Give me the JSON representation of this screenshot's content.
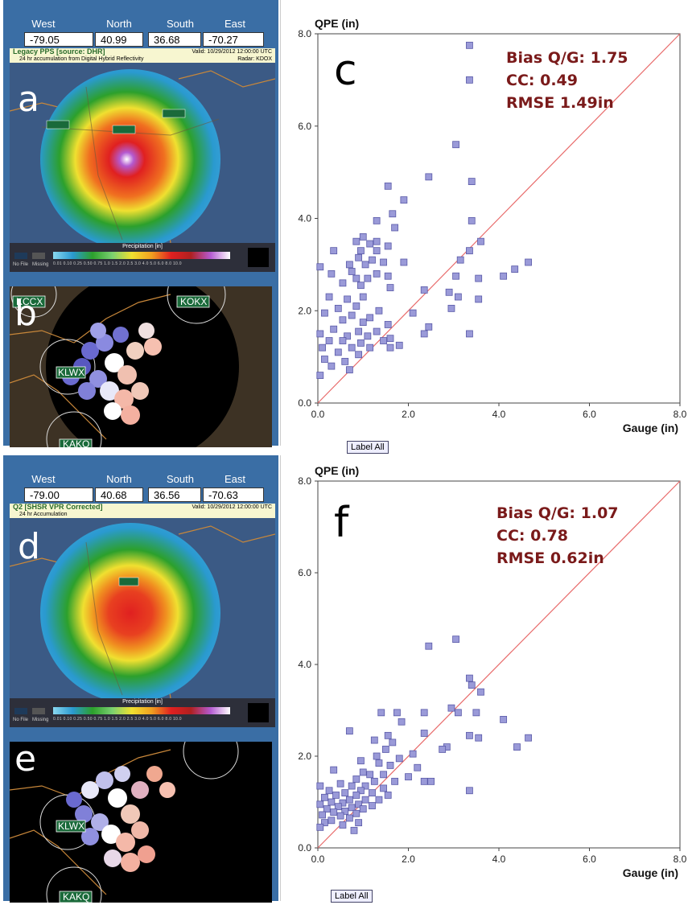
{
  "top": {
    "coords": {
      "west_label": "West",
      "north_label": "North",
      "south_label": "South",
      "east_label": "East",
      "west": "-79.05",
      "north": "40.99",
      "south": "36.68",
      "east": "-70.27"
    },
    "product": {
      "title": "Legacy PPS [source: DHR]",
      "sub": "24 hr accumulation from Digital Hybrid Reflectivity",
      "valid": "Valid: 10/29/2012 12:00:00 UTC",
      "radar": "Radar: KDOX"
    },
    "letter_map": "a",
    "letter_scatter": "b",
    "letter_chart": "c",
    "radar_labels": [
      "KCCX",
      "KOKX",
      "KLWX",
      "KAKQ"
    ],
    "stats": {
      "bias": "Bias Q/G: 1.75",
      "cc": "CC: 0.49",
      "rmse": "RMSE 1.49in"
    },
    "label_all": "Label All"
  },
  "bottom": {
    "coords": {
      "west_label": "West",
      "north_label": "North",
      "south_label": "South",
      "east_label": "East",
      "west": "-79.00",
      "north": "40.68",
      "south": "36.56",
      "east": "-70.63"
    },
    "product": {
      "title": "Q2 [SHSR VPR Corrected]",
      "sub": "24 hr Accumulation",
      "valid": "Valid: 10/29/2012 12:00:00 UTC",
      "radar": ""
    },
    "letter_map": "d",
    "letter_scatter": "e",
    "letter_chart": "f",
    "radar_labels": [
      "KLWX",
      "KAKQ"
    ],
    "stats": {
      "bias": "Bias Q/G: 1.07",
      "cc": "CC: 0.78",
      "rmse": "RMSE 0.62in"
    },
    "label_all": "Label All"
  },
  "precip_legend": {
    "title": "Precipitation [in]",
    "ticks": [
      "0.01",
      "0.10",
      "0.25",
      "0.50",
      "0.75",
      "1.0",
      "1.5",
      "2.0",
      "2.5",
      "3.0",
      "4.0",
      "5.0",
      "6.0",
      "8.0",
      "10.0"
    ],
    "nofile": "No File",
    "missing": "Missing"
  },
  "colors": {
    "point": "#9a9ad8",
    "point_stroke": "#5a5aa8",
    "oneline": "#e86a6a",
    "stat": "#7a1a1a"
  },
  "chart_data": [
    {
      "type": "scatter",
      "panel": "c",
      "ylabel": "QPE (in)",
      "xlabel": "Gauge (in)",
      "xlim": [
        0,
        8
      ],
      "ylim": [
        0,
        8
      ],
      "xticks": [
        "0.0",
        "2.0",
        "4.0",
        "6.0",
        "8.0"
      ],
      "yticks": [
        "0.0",
        "2.0",
        "4.0",
        "6.0",
        "8.0"
      ],
      "reference_line": "1:1",
      "points": [
        [
          3.35,
          7.75
        ],
        [
          3.35,
          7.0
        ],
        [
          3.05,
          5.6
        ],
        [
          2.45,
          4.9
        ],
        [
          1.55,
          4.7
        ],
        [
          1.9,
          4.4
        ],
        [
          3.4,
          4.8
        ],
        [
          1.65,
          4.1
        ],
        [
          1.3,
          3.95
        ],
        [
          3.4,
          3.95
        ],
        [
          1.7,
          3.8
        ],
        [
          1.0,
          3.6
        ],
        [
          1.3,
          3.5
        ],
        [
          0.85,
          3.5
        ],
        [
          1.15,
          3.45
        ],
        [
          0.35,
          3.3
        ],
        [
          0.95,
          3.3
        ],
        [
          1.55,
          3.4
        ],
        [
          3.6,
          3.5
        ],
        [
          3.35,
          3.3
        ],
        [
          1.3,
          3.3
        ],
        [
          0.9,
          3.15
        ],
        [
          1.2,
          3.1
        ],
        [
          1.45,
          3.05
        ],
        [
          0.7,
          3.0
        ],
        [
          1.05,
          3.0
        ],
        [
          1.9,
          3.05
        ],
        [
          3.15,
          3.1
        ],
        [
          4.65,
          3.05
        ],
        [
          0.05,
          2.95
        ],
        [
          0.3,
          2.8
        ],
        [
          0.75,
          2.85
        ],
        [
          1.3,
          2.8
        ],
        [
          1.55,
          2.75
        ],
        [
          4.35,
          2.9
        ],
        [
          0.85,
          2.7
        ],
        [
          1.1,
          2.7
        ],
        [
          3.05,
          2.75
        ],
        [
          3.55,
          2.7
        ],
        [
          4.1,
          2.75
        ],
        [
          0.55,
          2.6
        ],
        [
          0.95,
          2.55
        ],
        [
          1.6,
          2.5
        ],
        [
          0.25,
          2.3
        ],
        [
          0.65,
          2.25
        ],
        [
          1.0,
          2.3
        ],
        [
          2.35,
          2.45
        ],
        [
          2.9,
          2.4
        ],
        [
          3.1,
          2.3
        ],
        [
          0.85,
          2.1
        ],
        [
          0.45,
          2.05
        ],
        [
          1.35,
          2.0
        ],
        [
          3.55,
          2.25
        ],
        [
          0.15,
          1.95
        ],
        [
          0.75,
          1.9
        ],
        [
          1.15,
          1.85
        ],
        [
          2.1,
          1.95
        ],
        [
          2.95,
          2.05
        ],
        [
          0.55,
          1.8
        ],
        [
          1.0,
          1.75
        ],
        [
          1.55,
          1.7
        ],
        [
          2.45,
          1.65
        ],
        [
          0.35,
          1.6
        ],
        [
          0.9,
          1.55
        ],
        [
          1.3,
          1.55
        ],
        [
          0.05,
          1.5
        ],
        [
          0.65,
          1.45
        ],
        [
          1.1,
          1.45
        ],
        [
          1.6,
          1.4
        ],
        [
          2.35,
          1.5
        ],
        [
          3.35,
          1.5
        ],
        [
          0.25,
          1.35
        ],
        [
          0.55,
          1.35
        ],
        [
          0.95,
          1.3
        ],
        [
          1.45,
          1.35
        ],
        [
          1.8,
          1.25
        ],
        [
          0.1,
          1.2
        ],
        [
          0.75,
          1.2
        ],
        [
          1.15,
          1.2
        ],
        [
          1.6,
          1.2
        ],
        [
          0.45,
          1.1
        ],
        [
          0.9,
          1.05
        ],
        [
          0.15,
          0.95
        ],
        [
          0.6,
          0.9
        ],
        [
          0.3,
          0.8
        ],
        [
          0.7,
          0.72
        ],
        [
          0.05,
          0.6
        ]
      ]
    },
    {
      "type": "scatter",
      "panel": "f",
      "ylabel": "QPE (in)",
      "xlabel": "Gauge (in)",
      "xlim": [
        0,
        8
      ],
      "ylim": [
        0,
        8
      ],
      "xticks": [
        "0.0",
        "2.0",
        "4.0",
        "6.0",
        "8.0"
      ],
      "yticks": [
        "0.0",
        "2.0",
        "4.0",
        "6.0",
        "8.0"
      ],
      "reference_line": "1:1",
      "points": [
        [
          3.05,
          4.55
        ],
        [
          2.45,
          4.4
        ],
        [
          3.35,
          3.7
        ],
        [
          3.4,
          3.55
        ],
        [
          3.6,
          3.4
        ],
        [
          2.95,
          3.05
        ],
        [
          1.4,
          2.95
        ],
        [
          3.1,
          2.95
        ],
        [
          1.75,
          2.95
        ],
        [
          2.35,
          2.95
        ],
        [
          3.5,
          2.95
        ],
        [
          1.85,
          2.75
        ],
        [
          4.1,
          2.8
        ],
        [
          0.7,
          2.55
        ],
        [
          2.35,
          2.5
        ],
        [
          1.55,
          2.45
        ],
        [
          3.35,
          2.45
        ],
        [
          3.55,
          2.4
        ],
        [
          4.65,
          2.4
        ],
        [
          1.25,
          2.35
        ],
        [
          1.65,
          2.3
        ],
        [
          2.85,
          2.2
        ],
        [
          4.4,
          2.2
        ],
        [
          1.5,
          2.15
        ],
        [
          2.75,
          2.15
        ],
        [
          2.1,
          2.05
        ],
        [
          1.3,
          2.0
        ],
        [
          1.8,
          1.95
        ],
        [
          0.95,
          1.9
        ],
        [
          1.35,
          1.85
        ],
        [
          1.6,
          1.8
        ],
        [
          2.2,
          1.75
        ],
        [
          0.35,
          1.7
        ],
        [
          1.0,
          1.65
        ],
        [
          1.15,
          1.6
        ],
        [
          1.45,
          1.6
        ],
        [
          2.0,
          1.55
        ],
        [
          2.35,
          1.45
        ],
        [
          2.5,
          1.45
        ],
        [
          0.85,
          1.5
        ],
        [
          1.25,
          1.45
        ],
        [
          1.7,
          1.45
        ],
        [
          0.5,
          1.4
        ],
        [
          0.75,
          1.35
        ],
        [
          1.05,
          1.35
        ],
        [
          0.05,
          1.35
        ],
        [
          1.45,
          1.3
        ],
        [
          0.25,
          1.25
        ],
        [
          0.95,
          1.25
        ],
        [
          3.35,
          1.25
        ],
        [
          0.6,
          1.2
        ],
        [
          1.2,
          1.2
        ],
        [
          0.4,
          1.15
        ],
        [
          0.85,
          1.15
        ],
        [
          1.55,
          1.15
        ],
        [
          0.15,
          1.1
        ],
        [
          0.7,
          1.05
        ],
        [
          1.05,
          1.05
        ],
        [
          1.35,
          1.05
        ],
        [
          0.3,
          1.0
        ],
        [
          0.55,
          0.98
        ],
        [
          0.9,
          0.95
        ],
        [
          0.05,
          0.95
        ],
        [
          1.2,
          0.92
        ],
        [
          0.45,
          0.9
        ],
        [
          0.75,
          0.88
        ],
        [
          0.2,
          0.85
        ],
        [
          1.0,
          0.85
        ],
        [
          0.6,
          0.8
        ],
        [
          0.35,
          0.78
        ],
        [
          0.85,
          0.75
        ],
        [
          0.1,
          0.72
        ],
        [
          0.5,
          0.7
        ],
        [
          0.7,
          0.65
        ],
        [
          0.3,
          0.6
        ],
        [
          0.15,
          0.55
        ],
        [
          0.9,
          0.55
        ],
        [
          0.55,
          0.5
        ],
        [
          0.05,
          0.45
        ],
        [
          0.8,
          0.38
        ]
      ]
    }
  ]
}
